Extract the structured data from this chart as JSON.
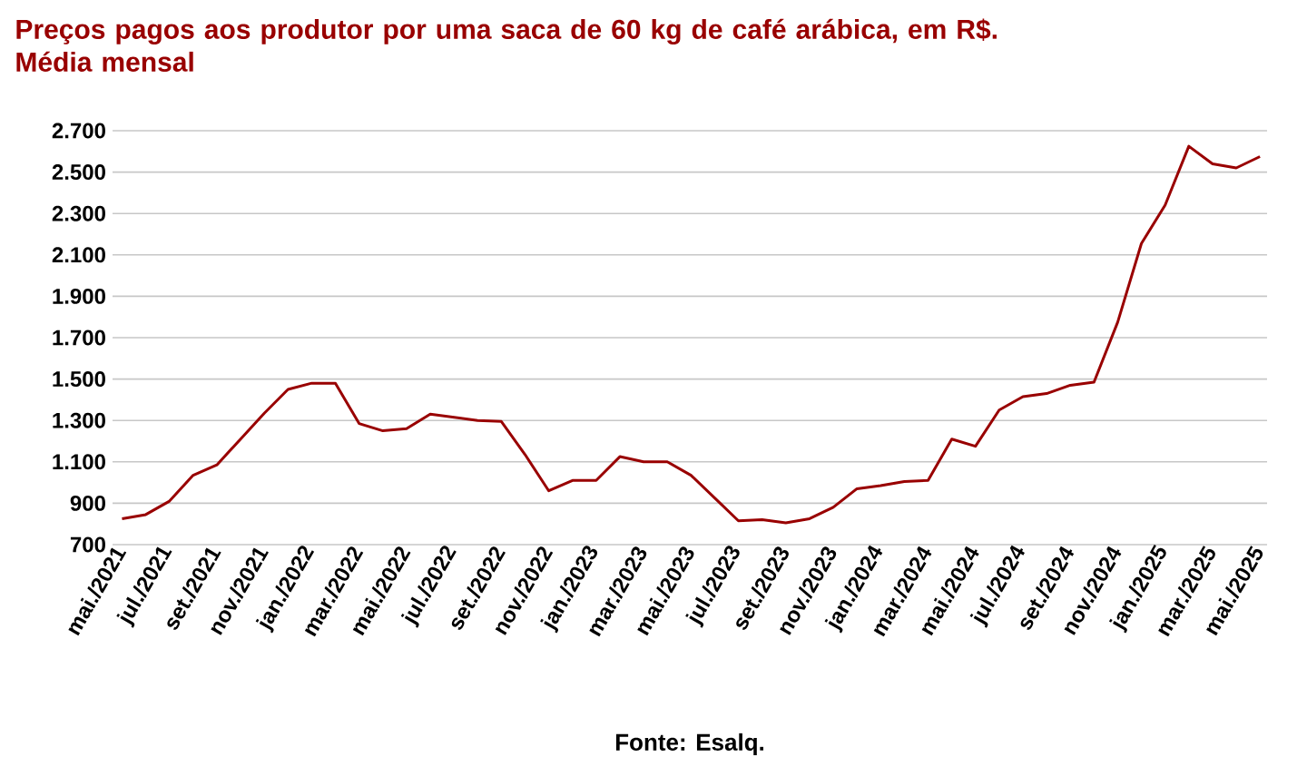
{
  "chart_data": {
    "type": "line",
    "title": "Preços pagos aos produtor por uma saca de 60 kg de café arábica, em R$. Média mensal",
    "categories": [
      "mai./2021",
      null,
      "jul./2021",
      null,
      "set./2021",
      null,
      "nov./2021",
      null,
      "jan./2022",
      null,
      "mar./2022",
      null,
      "mai./2022",
      null,
      "jul./2022",
      null,
      "set./2022",
      null,
      "nov./2022",
      null,
      "jan./2023",
      null,
      "mar./2023",
      null,
      "mai./2023",
      null,
      "jul./2023",
      null,
      "set./2023",
      null,
      "nov./2023",
      null,
      "jan./2024",
      null,
      "mar./2024",
      null,
      "mai./2024",
      null,
      "jul./2024",
      null,
      "set./2024",
      null,
      "nov./2024",
      null,
      "jan./2025",
      null,
      "mar./2025",
      null,
      "mai./2025"
    ],
    "series": [
      {
        "color": "#990000",
        "values": [
          825,
          845,
          910,
          1035,
          1085,
          1210,
          1335,
          1450,
          1480,
          1480,
          1285,
          1250,
          1260,
          1330,
          1315,
          1300,
          1295,
          1135,
          960,
          1010,
          1010,
          1125,
          1100,
          1100,
          1035,
          925,
          815,
          820,
          805,
          825,
          880,
          970,
          985,
          1005,
          1010,
          1210,
          1175,
          1350,
          1415,
          1430,
          1470,
          1485,
          1775,
          2155,
          2340,
          2625,
          2540,
          2520,
          2575
        ]
      }
    ],
    "ylim": [
      700,
      2700
    ],
    "yticks": [
      700,
      900,
      {
        "value": 1100,
        "label": "1.100"
      },
      {
        "value": 1300,
        "label": "1.300"
      },
      {
        "value": 1500,
        "label": "1.500"
      },
      {
        "value": 1700,
        "label": "1.700"
      },
      {
        "value": 1900,
        "label": "1.900"
      },
      {
        "value": 2100,
        "label": "2.100"
      },
      {
        "value": 2300,
        "label": "2.300"
      },
      {
        "value": 2500,
        "label": "2.500"
      },
      {
        "value": 2700,
        "label": "2.700"
      }
    ],
    "grid": "y",
    "annotations": [
      "Fonte: Esalq."
    ]
  }
}
